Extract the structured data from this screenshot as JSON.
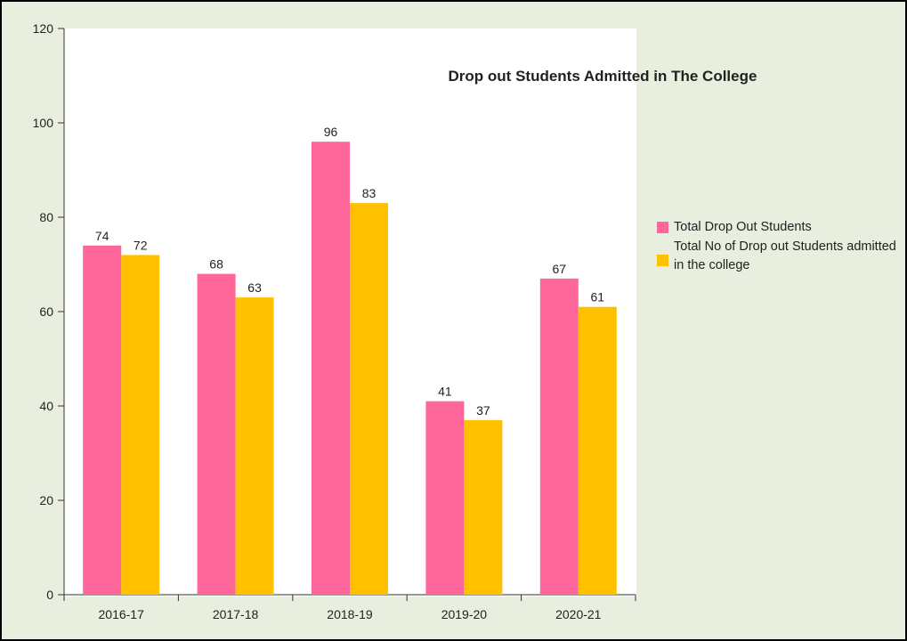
{
  "colors": {
    "series1": "#ff6699",
    "series2": "#ffc000",
    "frame_bg": "#e9efdf"
  },
  "chart_data": {
    "type": "bar",
    "title": "Drop out Students Admitted in The College",
    "xlabel": "",
    "ylabel": "",
    "categories": [
      "2016-17",
      "2017-18",
      "2018-19",
      "2019-20",
      "2020-21"
    ],
    "series": [
      {
        "name": "Total Drop Out Students",
        "values": [
          74,
          68,
          96,
          41,
          67
        ]
      },
      {
        "name": "Total No of Drop out Students admitted in the college",
        "values": [
          72,
          63,
          83,
          37,
          61
        ]
      }
    ],
    "ylim": [
      0,
      120
    ],
    "yticks": [
      0,
      20,
      40,
      60,
      80,
      100,
      120
    ],
    "grid": false,
    "legend_position": "right",
    "data_labels": true
  }
}
